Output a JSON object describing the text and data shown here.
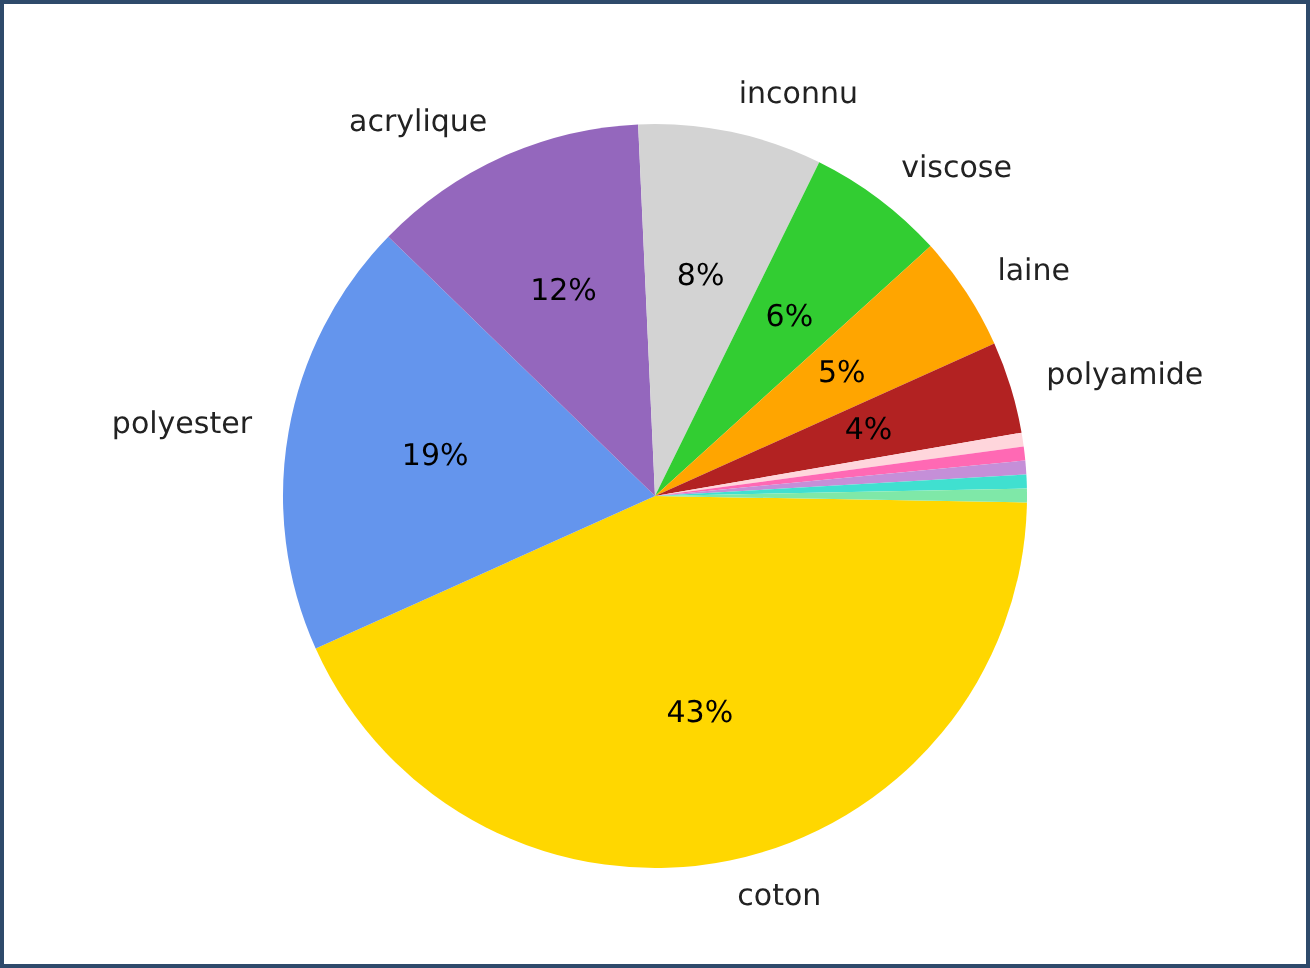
{
  "chart_data": {
    "type": "pie",
    "categories": [
      "coton",
      "polyester",
      "acrylique",
      "inconnu",
      "viscose",
      "laine",
      "polyamide",
      null,
      null,
      null,
      null,
      null
    ],
    "values": [
      43,
      19,
      12,
      8,
      6,
      5,
      4,
      0.6,
      0.6,
      0.6,
      0.6,
      0.6
    ],
    "value_labels": [
      "43%",
      "19%",
      "12%",
      "8%",
      "6%",
      "5%",
      "4%",
      null,
      null,
      null,
      null,
      null
    ],
    "colors": [
      "#ffd700",
      "#6495ed",
      "#9467bd",
      "#d3d3d3",
      "#32cd32",
      "#ffa500",
      "#b22222",
      "#ffd6dc",
      "#ff69b4",
      "#c58fd8",
      "#40e0d0",
      "#7fe8a8"
    ]
  }
}
